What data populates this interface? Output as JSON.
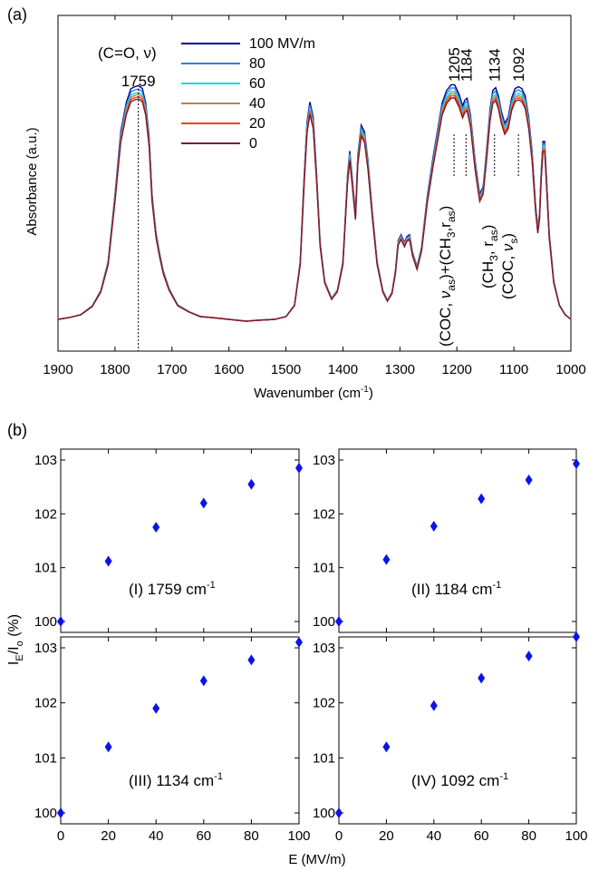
{
  "chart_data": [
    {
      "type": "line",
      "panel_label": "(a)",
      "xlabel": "Wavenumber (cm",
      "xlabel_sup": "-1",
      "xlabel_close": ")",
      "ylabel": "Absorbance (a.u.)",
      "xlim": [
        1900,
        1000
      ],
      "x_reversed": true,
      "x_ticks": [
        1900,
        1800,
        1700,
        1600,
        1500,
        1400,
        1300,
        1200,
        1100,
        1000
      ],
      "legend_title": "(C=O, ν)",
      "series": [
        {
          "name": "100 MV/m",
          "color": "#00008b"
        },
        {
          "name": "80",
          "color": "#2f7fe0"
        },
        {
          "name": "60",
          "color": "#22d8d8"
        },
        {
          "name": "40",
          "color": "#b8864a"
        },
        {
          "name": "20",
          "color": "#ff3c14"
        },
        {
          "name": "0",
          "color": "#7a1a2e"
        }
      ],
      "peak_labels": [
        {
          "wavenumber": 1759,
          "label": "1759"
        },
        {
          "wavenumber": 1205,
          "label": "1205"
        },
        {
          "wavenumber": 1184,
          "label": "1184"
        },
        {
          "wavenumber": 1134,
          "label": "1134"
        },
        {
          "wavenumber": 1092,
          "label": "1092"
        }
      ],
      "assignments": [
        "(COC, ν_as)+(CH_3, r_as)",
        "(CH_3, r_as)",
        "(COC, ν_s)"
      ]
    },
    {
      "type": "scatter",
      "panel_label": "(b)",
      "xlabel": "E (MV/m)",
      "ylabel": "I_E/I_o (%)",
      "xlim": [
        0,
        100
      ],
      "ylim": [
        99.9,
        103.0
      ],
      "x_ticks": [
        0,
        20,
        40,
        60,
        80,
        100
      ],
      "y_ticks": [
        100,
        101,
        102,
        103
      ],
      "marker_color": "#0a14e6",
      "panels": [
        {
          "label": "(I) 1759 cm",
          "sup": "-1",
          "x": [
            0,
            20,
            40,
            60,
            80,
            100
          ],
          "y": [
            100.0,
            101.12,
            101.75,
            102.2,
            102.55,
            102.85
          ]
        },
        {
          "label": "(II) 1184 cm",
          "sup": "-1",
          "x": [
            0,
            20,
            40,
            60,
            80,
            100
          ],
          "y": [
            100.0,
            101.15,
            101.77,
            102.28,
            102.63,
            102.93
          ]
        },
        {
          "label": "(III) 1134 cm",
          "sup": "-1",
          "x": [
            0,
            20,
            40,
            60,
            80,
            100
          ],
          "y": [
            100.0,
            101.2,
            101.9,
            102.4,
            102.78,
            103.1
          ]
        },
        {
          "label": "(IV) 1092 cm",
          "sup": "-1",
          "x": [
            0,
            20,
            40,
            60,
            80,
            100
          ],
          "y": [
            100.0,
            101.2,
            101.95,
            102.45,
            102.85,
            103.2
          ]
        }
      ]
    }
  ]
}
